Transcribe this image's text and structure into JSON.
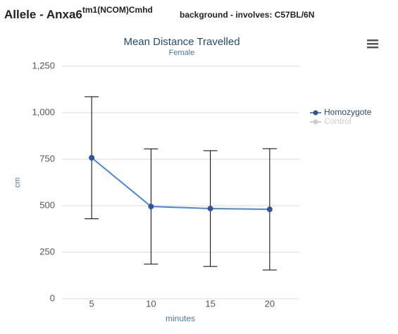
{
  "header": {
    "allele": "Allele - Anxa6",
    "allele_sup": "tm1(NCOM)Cmhd",
    "background": "background - involves: C57BL/6N"
  },
  "chart_data": {
    "type": "line",
    "title": "Mean Distance Travelled",
    "subtitle": "Female",
    "x_label": "minutes",
    "y_label": "cm",
    "categories": [
      "5",
      "10",
      "15",
      "20"
    ],
    "series": [
      {
        "name": "Homozygote",
        "color": "#4a86d8",
        "values": [
          758,
          496,
          485,
          481
        ],
        "errors": [
          328,
          310,
          311,
          326
        ],
        "visible": true
      },
      {
        "name": "Control",
        "color": "#cccccc",
        "values": [
          null,
          null,
          null,
          null
        ],
        "visible": false
      }
    ],
    "ylim": [
      0,
      1250
    ],
    "yticks": [
      0,
      250,
      500,
      750,
      {
        "value": 1000,
        "label": "1,000"
      },
      {
        "value": 1250,
        "label": "1,250"
      }
    ],
    "grid": true,
    "legend": "right"
  }
}
